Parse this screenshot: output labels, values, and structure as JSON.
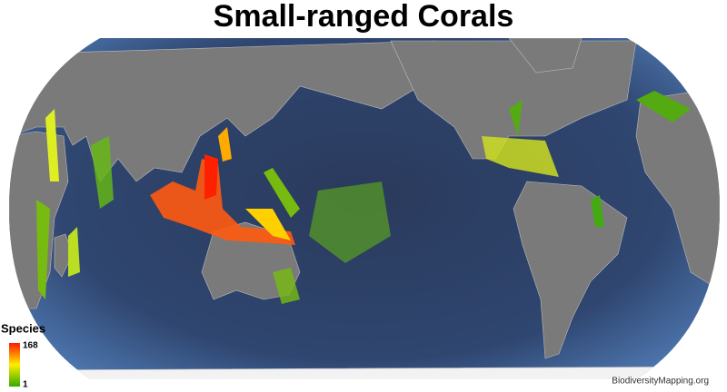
{
  "header": {
    "title": "Small-ranged Corals"
  },
  "legend": {
    "title": "Species",
    "max": 168,
    "min": 1
  },
  "credit": "BiodiversityMapping.org"
}
